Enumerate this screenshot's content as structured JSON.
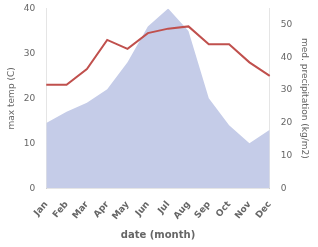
{
  "chart_data": {
    "type": "line",
    "xlabel": "date (month)",
    "ylabel": "max temp (C)",
    "y2label": "med. precipitation (kg/m2)",
    "categories": [
      "Jan",
      "Feb",
      "Mar",
      "Apr",
      "May",
      "Jun",
      "Jul",
      "Aug",
      "Sep",
      "Oct",
      "Nov",
      "Dec"
    ],
    "series": [
      {
        "type": "area",
        "color": "#c5cce8",
        "values": [
          14.5,
          17.0,
          19.0,
          22.0,
          28.0,
          36.0,
          40.0,
          35.0,
          20.0,
          14.0,
          10.0,
          13.0
        ]
      },
      {
        "type": "line",
        "color": "#c0504d",
        "values": [
          23.0,
          23.0,
          26.5,
          33.0,
          31.0,
          34.5,
          35.5,
          36.0,
          32.0,
          32.0,
          28.0,
          25.0
        ]
      }
    ],
    "ylim": [
      0,
      40
    ],
    "yticks": [
      0,
      10,
      20,
      30,
      40
    ],
    "y2lim": [
      0,
      55
    ],
    "y2ticks": [
      0,
      10,
      20,
      30,
      40,
      50
    ],
    "grid": false
  }
}
